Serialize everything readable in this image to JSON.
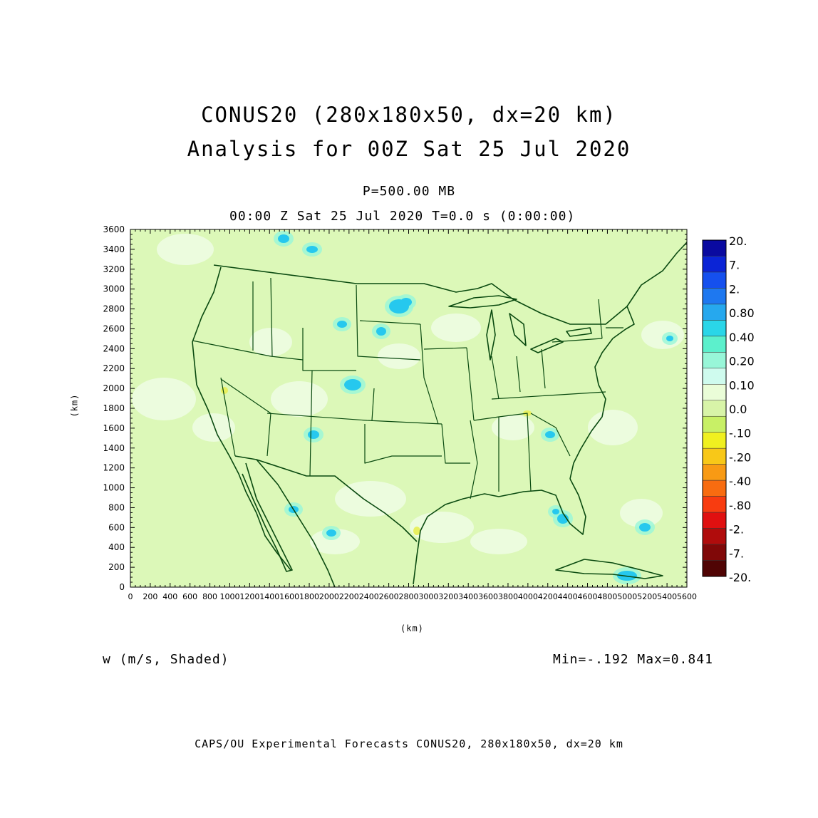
{
  "header": {
    "title_line1": "CONUS20 (280x180x50, dx=20 km)",
    "title_line2": "Analysis for 00Z Sat 25 Jul 2020",
    "level": "P=500.00 MB",
    "time": "00:00 Z Sat 25 Jul 2020    T=0.0 s (0:00:00)"
  },
  "field": {
    "label": "w (m/s, Shaded)",
    "minmax": "Min=-.192 Max=0.841"
  },
  "footer": "CAPS/OU Experimental Forecasts  CONUS20, 280x180x50, dx=20 km",
  "axes": {
    "xlabel": "(km)",
    "ylabel": "(km)",
    "x_ticks": [
      "0",
      "200",
      "400",
      "600",
      "800",
      "1000",
      "1200",
      "1400",
      "1600",
      "1800",
      "2000",
      "2200",
      "2400",
      "2600",
      "2800",
      "3000",
      "3200",
      "3400",
      "3600",
      "3800",
      "4000",
      "4200",
      "4400",
      "4600",
      "4800",
      "5000",
      "5200",
      "5400",
      "5600"
    ],
    "y_ticks": [
      "0",
      "200",
      "400",
      "600",
      "800",
      "1000",
      "1200",
      "1400",
      "1600",
      "1800",
      "2000",
      "2200",
      "2400",
      "2600",
      "2800",
      "3000",
      "3200",
      "3400",
      "3600"
    ],
    "xlim": [
      0,
      5600
    ],
    "ylim": [
      0,
      3600
    ]
  },
  "colorbar": {
    "labels": [
      "20.",
      "7.",
      "2.",
      "0.80",
      "0.40",
      "0.20",
      "0.10",
      "0.0",
      "-.10",
      "-.20",
      "-.40",
      "-.80",
      "-2.",
      "-7.",
      "-20."
    ],
    "colors": [
      "#0a0aa0",
      "#0b24d6",
      "#1550ee",
      "#1e78f0",
      "#26a8ee",
      "#2ad6e8",
      "#5cf0cc",
      "#98f6d8",
      "#cffbee",
      "#eafdd8",
      "#d8f4a8",
      "#c8f066",
      "#f0f020",
      "#f8c818",
      "#f89a14",
      "#f86c10",
      "#f83c10",
      "#e01010",
      "#b00c0c",
      "#800808",
      "#500404"
    ]
  },
  "map": {
    "background_color": "#dcf8b8",
    "coast_color": "#0a4a10"
  }
}
